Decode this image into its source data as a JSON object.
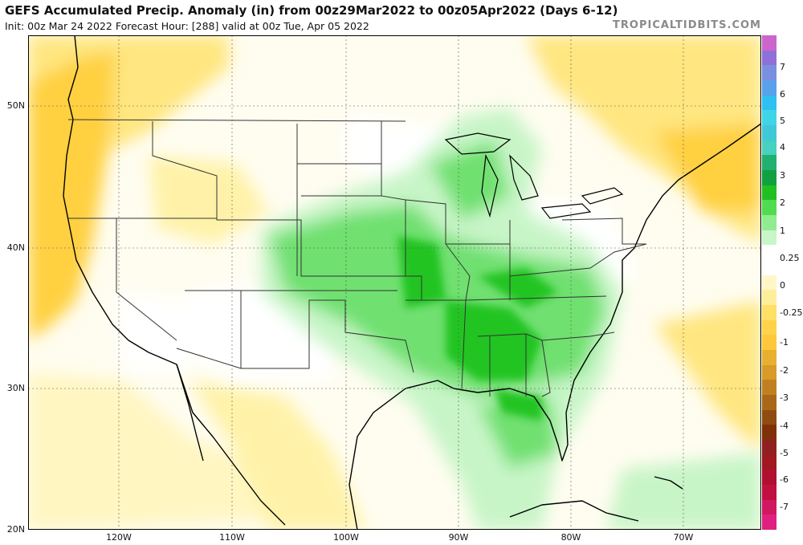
{
  "header": {
    "title": "GEFS Accumulated Precip. Anomaly (in) from 00z29Mar2022 to 00z05Apr2022 (Days 6-12)",
    "subtitle": "Init: 00z Mar 24 2022   Forecast Hour: [288]   valid at 00z Tue, Apr 05 2022",
    "brand": "TROPICALTIDBITS.COM"
  },
  "map": {
    "lat_labels": [
      "50N",
      "40N",
      "30N",
      "20N"
    ],
    "lon_labels": [
      "120W",
      "110W",
      "100W",
      "90W",
      "80W",
      "70W"
    ],
    "colors": {
      "ocean": "#ffffff",
      "coast": "#000000",
      "state_lines": "#333333",
      "wet_light": "#c8f5c8",
      "wet_mid": "#6fe06f",
      "wet_strong": "#21c421",
      "dry_light": "#fff6c2",
      "dry_mid": "#ffe680",
      "dry_strong": "#ffd040"
    }
  },
  "legend": {
    "labels": [
      "7",
      "6",
      "5",
      "4",
      "3",
      "2",
      "1",
      "0.25",
      "0",
      "-0.25",
      "-1",
      "-2",
      "-3",
      "-4",
      "-5",
      "-6",
      "-7"
    ],
    "colors": [
      "#cc66cc",
      "#8f70d8",
      "#7a8fe0",
      "#5aa0ea",
      "#2ec0f0",
      "#40d4e8",
      "#40c8d8",
      "#48d0c0",
      "#20b070",
      "#10a040",
      "#20c020",
      "#50dc50",
      "#90ec90",
      "#c8f6c8",
      "#ffffff",
      "#ffffff",
      "#fff7c8",
      "#ffee99",
      "#ffe066",
      "#ffd24a",
      "#ffc83a",
      "#e8b030",
      "#d89a28",
      "#c08020",
      "#a86818",
      "#904c10",
      "#803008",
      "#902020",
      "#a01820",
      "#b01030",
      "#c01040",
      "#d01860",
      "#e02080"
    ]
  }
}
